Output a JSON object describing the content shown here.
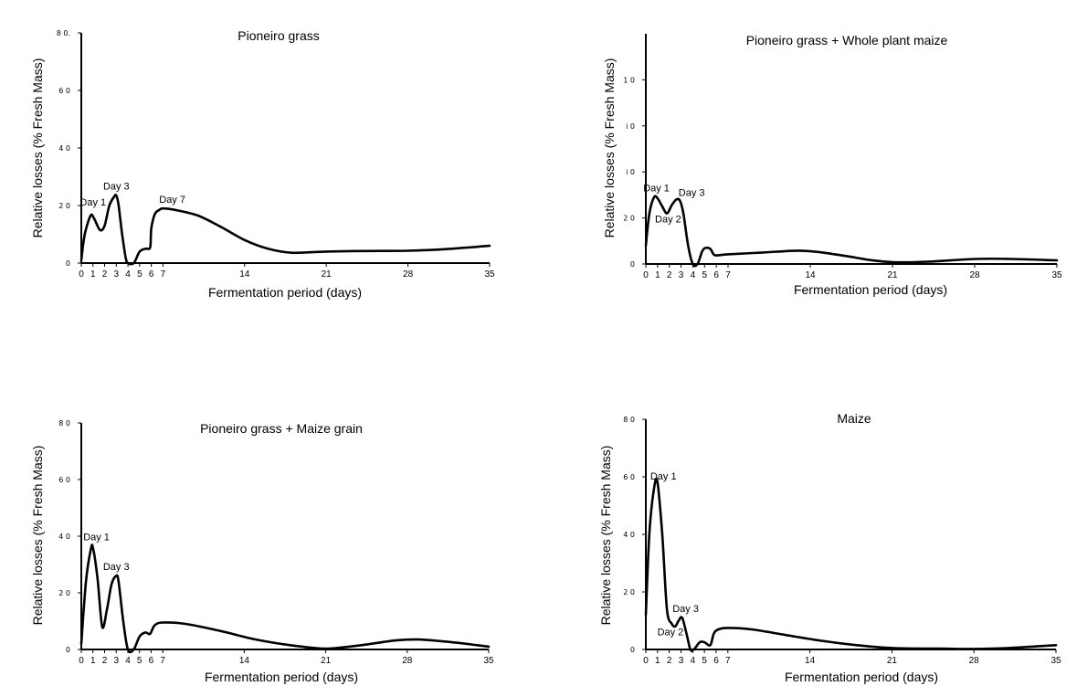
{
  "chart_data": [
    {
      "type": "line",
      "title": "Pioneiro grass",
      "xlabel": "Fermentation period (days)",
      "ylabel": "Relative losses (% Fresh Mass)",
      "xticks": [
        0,
        1,
        2,
        3,
        4,
        5,
        6,
        7,
        14,
        21,
        28,
        35
      ],
      "xlim": [
        0,
        35
      ],
      "ylim": [
        0,
        80
      ],
      "yticks": [
        {
          "value": 0,
          "label": "0"
        },
        {
          "value": 20,
          "label": "2 0"
        },
        {
          "value": 40,
          "label": "4 0"
        },
        {
          "value": 60,
          "label": "6 0"
        },
        {
          "value": 80,
          "label": "8 0."
        }
      ],
      "x": [
        0,
        0.3,
        0.8,
        1.1,
        1.6,
        2.0,
        2.4,
        2.8,
        3.0,
        3.2,
        3.5,
        3.8,
        4.0,
        4.5,
        5.0,
        5.5,
        5.9,
        6.0,
        6.3,
        6.7,
        7.0,
        8.0,
        10.0,
        12.0,
        14.0,
        16.0,
        18.0,
        21.0,
        24.0,
        28.0,
        31.0,
        35.0
      ],
      "y": [
        1,
        10,
        16.5,
        15.5,
        11.5,
        13,
        20,
        23,
        23.5,
        20,
        10,
        2,
        0,
        0,
        4,
        5,
        5.5,
        12,
        17,
        18.5,
        19,
        18.5,
        16.5,
        12.5,
        8,
        5,
        3.6,
        4,
        4.2,
        4.3,
        4.8,
        6
      ],
      "annotations": [
        {
          "text": "Day 1",
          "x": 1,
          "y": 20
        },
        {
          "text": "Day 3",
          "x": 3,
          "y": 25.5
        },
        {
          "text": "Day 7",
          "x": 7.8,
          "y": 21
        }
      ]
    },
    {
      "type": "line",
      "title": "Pioneiro grass + Whole plant maize",
      "xlabel": "Fermentation period (days)",
      "ylabel": "Relative losses (% Fresh Mass)",
      "xticks": [
        0,
        1,
        2,
        3,
        4,
        5,
        6,
        7,
        14,
        21,
        28,
        35
      ],
      "xlim": [
        0,
        35
      ],
      "ylim": [
        0,
        100
      ],
      "yticks": [
        {
          "value": 0,
          "label": "0"
        },
        {
          "value": 20,
          "label": "2 0"
        },
        {
          "value": 40,
          "label": "i 0"
        },
        {
          "value": 60,
          "label": "i 0"
        },
        {
          "value": 80,
          "label": "1 0"
        }
      ],
      "x": [
        0,
        0.3,
        0.7,
        1.0,
        1.4,
        1.8,
        2.2,
        2.6,
        2.9,
        3.2,
        3.6,
        4.0,
        4.4,
        4.8,
        5.1,
        5.5,
        5.8,
        6.2,
        7.0,
        10.0,
        13.0,
        15.0,
        17.0,
        19.0,
        21.0,
        24.0,
        28.0,
        31.0,
        35.0
      ],
      "y": [
        8,
        22,
        29,
        28.5,
        25,
        22,
        25.5,
        28,
        27.5,
        22,
        8,
        0,
        0,
        5.5,
        7,
        6.5,
        4,
        3.8,
        4.2,
        5,
        5.8,
        5,
        3.5,
        1.8,
        0.8,
        1,
        2.2,
        2.2,
        1.6
      ],
      "annotations": [
        {
          "text": "Day 1",
          "x": 0.9,
          "y": 31.5
        },
        {
          "text": "Day 2",
          "x": 1.9,
          "y": 18
        },
        {
          "text": "Day 3",
          "x": 3.9,
          "y": 29.5
        }
      ]
    },
    {
      "type": "line",
      "title": "Pioneiro grass + Maize grain",
      "xlabel": "Fermentation period (days)",
      "ylabel": "Relative losses (% Fresh Mass)",
      "xticks": [
        0,
        1,
        2,
        3,
        4,
        5,
        6,
        7,
        14,
        21,
        28,
        35
      ],
      "xlim": [
        0,
        35
      ],
      "ylim": [
        0,
        80
      ],
      "yticks": [
        {
          "value": 0,
          "label": "0"
        },
        {
          "value": 20,
          "label": "2 0"
        },
        {
          "value": 40,
          "label": "4 0"
        },
        {
          "value": 60,
          "label": "6 0"
        },
        {
          "value": 80,
          "label": "8 0"
        }
      ],
      "x": [
        0,
        0.4,
        0.8,
        1.0,
        1.4,
        1.8,
        2.2,
        2.6,
        3.0,
        3.2,
        3.6,
        4.0,
        4.5,
        5.0,
        5.5,
        5.9,
        6.3,
        7.0,
        9.0,
        12.0,
        15.0,
        18.0,
        21.0,
        24.0,
        27.0,
        29.0,
        32.0,
        35.0
      ],
      "y": [
        2,
        24,
        35,
        36,
        25,
        8,
        14,
        23,
        26,
        24,
        10,
        0,
        0,
        4.5,
        6,
        5.5,
        8.5,
        9.5,
        9,
        6.5,
        3.5,
        1.5,
        0.3,
        1.5,
        3.2,
        3.5,
        2.5,
        1
      ],
      "annotations": [
        {
          "text": "Day 1",
          "x": 1.3,
          "y": 38.5
        },
        {
          "text": "Day 3",
          "x": 3.0,
          "y": 28
        }
      ]
    },
    {
      "type": "line",
      "title": "Maize",
      "xlabel": "Fermentation period (days)",
      "ylabel": "Relative losses (% Fresh Mass)",
      "xticks": [
        0,
        1,
        2,
        3,
        4,
        5,
        6,
        7,
        14,
        21,
        28,
        35
      ],
      "xlim": [
        0,
        35
      ],
      "ylim": [
        0,
        80
      ],
      "yticks": [
        {
          "value": 0,
          "label": "0"
        },
        {
          "value": 20,
          "label": "2 0"
        },
        {
          "value": 40,
          "label": "4 0"
        },
        {
          "value": 60,
          "label": "6 0"
        },
        {
          "value": 80,
          "label": "8 0"
        }
      ],
      "x": [
        0,
        0.3,
        0.7,
        1.0,
        1.4,
        1.8,
        2.2,
        2.5,
        2.8,
        3.1,
        3.5,
        3.8,
        4.1,
        4.6,
        5.0,
        5.5,
        5.8,
        6.2,
        7.0,
        9.0,
        12.0,
        15.0,
        18.0,
        21.0,
        25.0,
        28.0,
        31.0,
        35.0
      ],
      "y": [
        12,
        40,
        56,
        58,
        40,
        14,
        9,
        8,
        10,
        11,
        5,
        0,
        0,
        2.5,
        2.5,
        1.5,
        5.5,
        7,
        7.5,
        7,
        5,
        3,
        1.5,
        0.5,
        0.3,
        0.2,
        0.5,
        1.5
      ],
      "annotations": [
        {
          "text": "Day 1",
          "x": 1.5,
          "y": 59
        },
        {
          "text": "Day 3",
          "x": 3.4,
          "y": 13
        },
        {
          "text": "Day 2",
          "x": 2.1,
          "y": 5
        }
      ]
    }
  ]
}
